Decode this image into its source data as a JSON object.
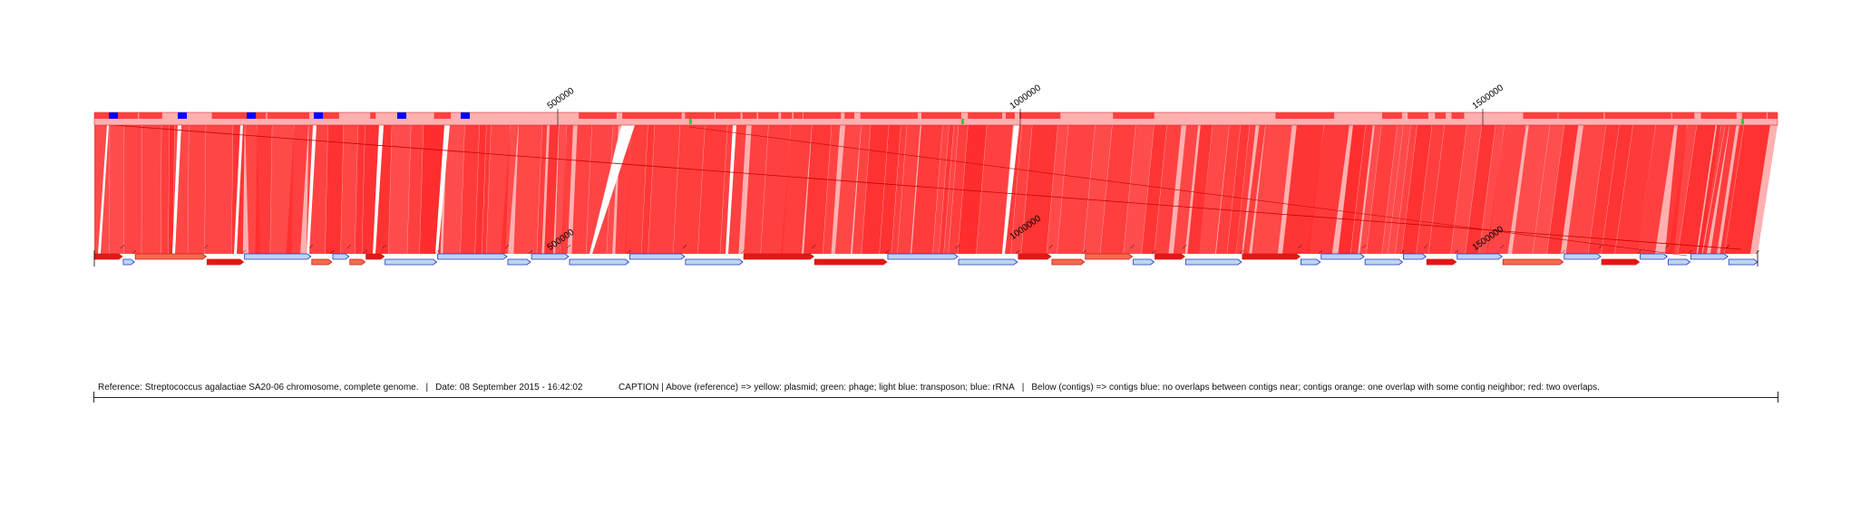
{
  "reference_axis": {
    "ticks": [
      "500000",
      "1000000",
      "1500000"
    ],
    "rrna_blocks": 6,
    "features": {
      "plasmid": "#f2e600",
      "phage": "#33cc33",
      "transposon": "#99ccff",
      "rrna": "#0000ff"
    }
  },
  "contig_axis": {
    "ticks": [
      "500000",
      "1000000",
      "1500000"
    ]
  },
  "colors": {
    "match": "#ff2d2d",
    "match_light": "#ffb0b0",
    "contig_blue": "#bcd6f0",
    "contig_blue_edge": "#2233cc",
    "contig_orange": "#f26b4f",
    "contig_red": "#e8141a"
  },
  "caption": {
    "reference": "Reference: Streptococcus agalactiae SA20-06 chromosome, complete genome.",
    "date": "Date: 08 September 2015 - 16:42:02",
    "legend_above": "CAPTION | Above (reference) => yellow: plasmid; green: phage; light blue: transposon; blue: rRNA",
    "legend_below": "Below (contigs) => contigs blue: no overlaps between contigs near; contigs orange: one overlap with some contig neighbor; red: two overlaps."
  },
  "separator": "|"
}
